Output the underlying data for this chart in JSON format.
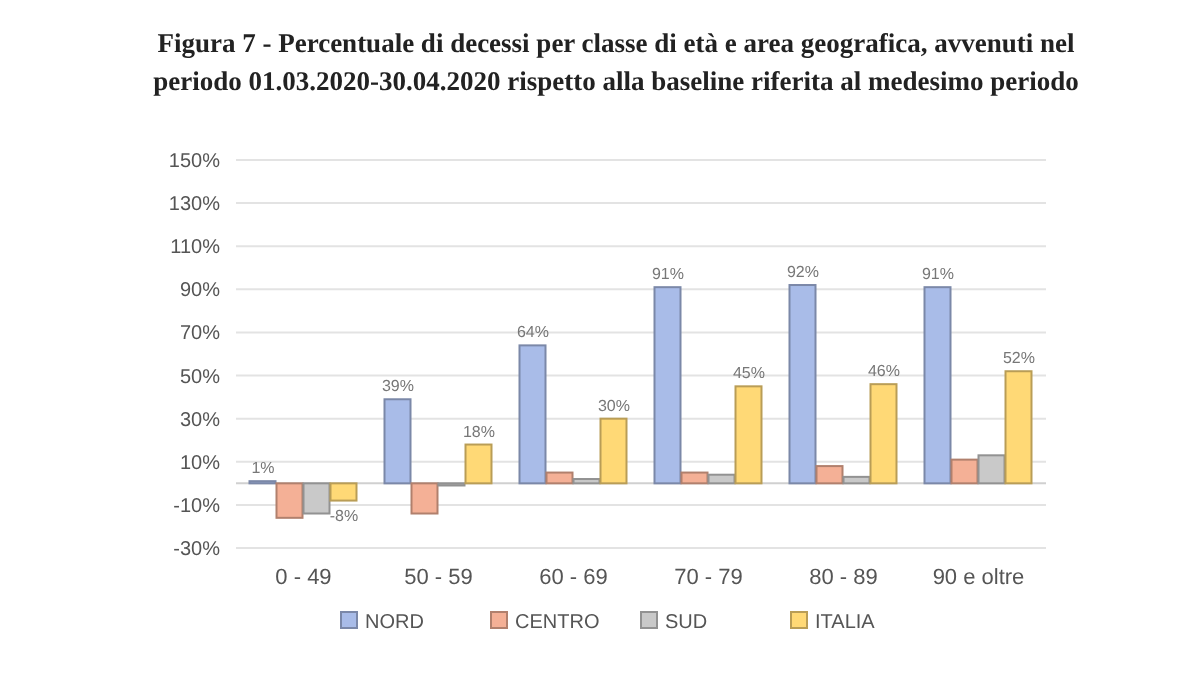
{
  "chart_data": {
    "type": "bar",
    "title": "Figura 7 - Percentuale di decessi per classe di età e area geografica, avvenuti nel periodo 01.03.2020-30.04.2020 rispetto alla baseline riferita al medesimo periodo",
    "categories": [
      "0 - 49",
      "50 - 59",
      "60 - 69",
      "70 - 79",
      "80 - 89",
      "90 e oltre"
    ],
    "series": [
      {
        "name": "NORD",
        "color": "#a9bce8",
        "values": [
          1,
          39,
          64,
          91,
          92,
          91
        ],
        "value_labels": [
          "1%",
          "39%",
          "64%",
          "91%",
          "92%",
          "91%"
        ]
      },
      {
        "name": "CENTRO",
        "color": "#f4b096",
        "values": [
          -16,
          -14,
          5,
          5,
          8,
          11
        ]
      },
      {
        "name": "SUD",
        "color": "#c9c9c9",
        "values": [
          -14,
          -1,
          2,
          4,
          3,
          13
        ]
      },
      {
        "name": "ITALIA",
        "color": "#ffd976",
        "values": [
          -8,
          18,
          30,
          45,
          46,
          52
        ],
        "value_labels": [
          "-8%",
          "18%",
          "30%",
          "45%",
          "46%",
          "52%"
        ]
      }
    ],
    "ylim": [
      -30,
      150
    ],
    "yticks": [
      {
        "value": -30,
        "label": "-30%"
      },
      {
        "value": -10,
        "label": "-10%"
      },
      {
        "value": 10,
        "label": "10%"
      },
      {
        "value": 30,
        "label": "30%"
      },
      {
        "value": 50,
        "label": "50%"
      },
      {
        "value": 70,
        "label": "70%"
      },
      {
        "value": 90,
        "label": "90%"
      },
      {
        "value": 110,
        "label": "110%"
      },
      {
        "value": 130,
        "label": "130%"
      },
      {
        "value": 150,
        "label": "150%"
      }
    ],
    "grid": "y",
    "legend": "bottom"
  }
}
